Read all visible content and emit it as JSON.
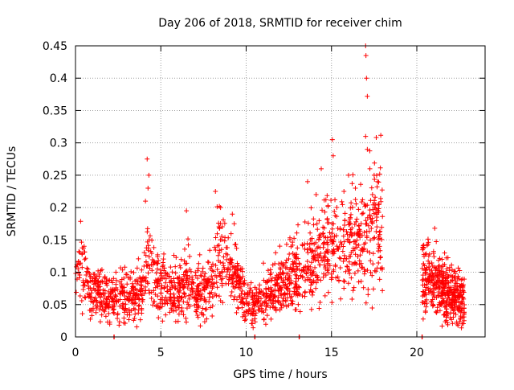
{
  "chart_data": {
    "type": "scatter",
    "title": "Day 206 of 2018, SRMTID for receiver chim",
    "xlabel": "GPS time / hours",
    "ylabel": "SRMTID / TECUs",
    "xlim": [
      0,
      24
    ],
    "ylim": [
      0,
      0.45
    ],
    "xticks": [
      0,
      5,
      10,
      15,
      20
    ],
    "xtick_labels": [
      "0",
      "5",
      "10",
      "15",
      "20"
    ],
    "yticks": [
      0,
      0.05,
      0.1,
      0.15,
      0.2,
      0.25,
      0.3,
      0.35,
      0.4,
      0.45
    ],
    "ytick_labels": [
      "0",
      "0.05",
      "0.1",
      "0.15",
      "0.2",
      "0.25",
      "0.3",
      "0.35",
      "0.4",
      "0.45"
    ],
    "grid": true,
    "marker": "+",
    "color": "#ff0000",
    "series": [
      {
        "name": "SRMTID",
        "envelope": [
          [
            0.0,
            0.11
          ],
          [
            0.25,
            0.12
          ],
          [
            0.5,
            0.09
          ],
          [
            1.0,
            0.07
          ],
          [
            1.5,
            0.065
          ],
          [
            2.0,
            0.055
          ],
          [
            2.5,
            0.065
          ],
          [
            3.0,
            0.06
          ],
          [
            3.5,
            0.055
          ],
          [
            4.0,
            0.08
          ],
          [
            4.3,
            0.12
          ],
          [
            4.6,
            0.09
          ],
          [
            5.0,
            0.075
          ],
          [
            6.0,
            0.07
          ],
          [
            6.5,
            0.085
          ],
          [
            7.0,
            0.075
          ],
          [
            7.5,
            0.07
          ],
          [
            8.0,
            0.08
          ],
          [
            8.4,
            0.13
          ],
          [
            8.8,
            0.12
          ],
          [
            9.2,
            0.1
          ],
          [
            9.6,
            0.075
          ],
          [
            10.0,
            0.055
          ],
          [
            10.4,
            0.045
          ],
          [
            11.0,
            0.06
          ],
          [
            12.0,
            0.075
          ],
          [
            13.0,
            0.095
          ],
          [
            14.0,
            0.115
          ],
          [
            14.5,
            0.13
          ],
          [
            15.0,
            0.14
          ],
          [
            15.5,
            0.13
          ],
          [
            16.0,
            0.145
          ],
          [
            16.5,
            0.15
          ],
          [
            17.0,
            0.155
          ],
          [
            17.5,
            0.17
          ],
          [
            18.0,
            0.17
          ]
        ],
        "segment_2": [
          [
            20.3,
            0.095
          ],
          [
            20.8,
            0.085
          ],
          [
            21.5,
            0.07
          ],
          [
            22.3,
            0.06
          ],
          [
            22.8,
            0.055
          ]
        ],
        "spikes": [
          [
            4.2,
            0.275
          ],
          [
            4.3,
            0.25
          ],
          [
            4.25,
            0.23
          ],
          [
            4.1,
            0.21
          ],
          [
            6.5,
            0.195
          ],
          [
            8.2,
            0.225
          ],
          [
            8.5,
            0.2
          ],
          [
            15.05,
            0.305
          ],
          [
            15.1,
            0.28
          ],
          [
            16.0,
            0.25
          ],
          [
            17.0,
            0.45
          ],
          [
            17.02,
            0.435
          ],
          [
            17.05,
            0.4
          ],
          [
            17.1,
            0.372
          ],
          [
            17.0,
            0.31
          ],
          [
            17.1,
            0.29
          ],
          [
            17.25,
            0.26
          ],
          [
            17.5,
            0.25
          ],
          [
            17.7,
            0.24
          ],
          [
            21.05,
            0.168
          ],
          [
            13.6,
            0.24
          ],
          [
            14.4,
            0.26
          ],
          [
            14.1,
            0.22
          ],
          [
            16.4,
            0.23
          ],
          [
            9.3,
            0.175
          ]
        ],
        "zero_markers": [
          2.25,
          10.5,
          13.1,
          20.3
        ]
      }
    ]
  }
}
